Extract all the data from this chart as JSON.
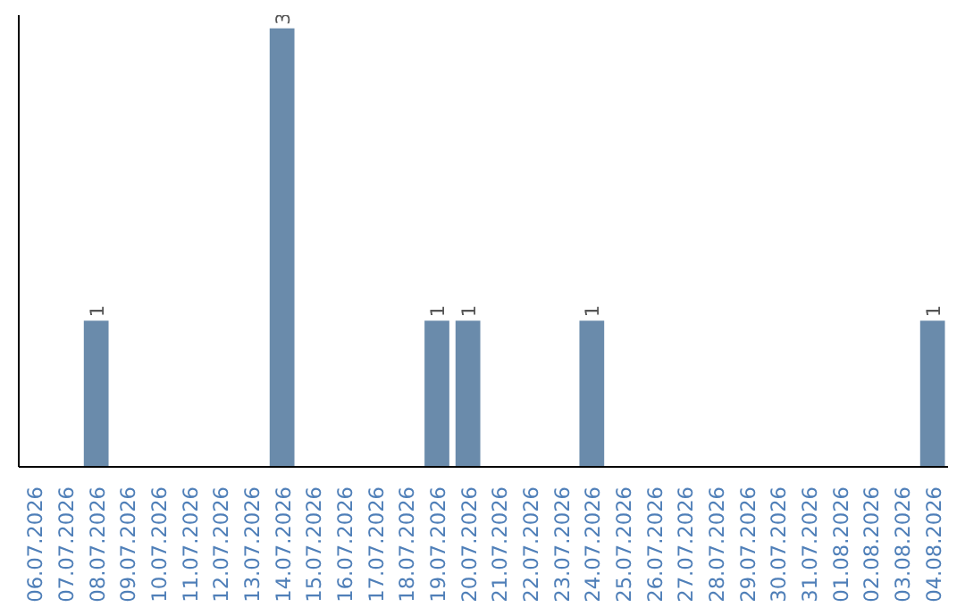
{
  "chart_data": {
    "type": "bar",
    "categories": [
      "06.07.2026",
      "07.07.2026",
      "08.07.2026",
      "09.07.2026",
      "10.07.2026",
      "11.07.2026",
      "12.07.2026",
      "13.07.2026",
      "14.07.2026",
      "15.07.2026",
      "16.07.2026",
      "17.07.2026",
      "18.07.2026",
      "19.07.2026",
      "20.07.2026",
      "21.07.2026",
      "22.07.2026",
      "23.07.2026",
      "24.07.2026",
      "25.07.2026",
      "26.07.2026",
      "27.07.2026",
      "28.07.2026",
      "29.07.2026",
      "30.07.2026",
      "31.07.2026",
      "01.08.2026",
      "02.08.2026",
      "03.08.2026",
      "04.08.2026"
    ],
    "values": [
      0,
      0,
      1,
      0,
      0,
      0,
      0,
      0,
      3,
      0,
      0,
      0,
      0,
      1,
      1,
      0,
      0,
      0,
      1,
      0,
      0,
      0,
      0,
      0,
      0,
      0,
      0,
      0,
      0,
      1
    ],
    "value_labels": [
      null,
      null,
      "1",
      null,
      null,
      null,
      null,
      null,
      "3",
      null,
      null,
      null,
      null,
      "1",
      "1",
      null,
      null,
      null,
      "1",
      null,
      null,
      null,
      null,
      null,
      null,
      null,
      null,
      null,
      null,
      "1"
    ],
    "color": "#6a8bab",
    "grid": false
  }
}
